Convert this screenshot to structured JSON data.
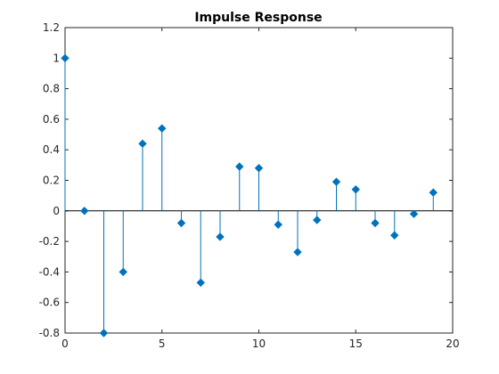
{
  "chart_data": {
    "type": "stem",
    "title": "Impulse Response",
    "xlabel": "",
    "ylabel": "",
    "xlim": [
      0,
      20
    ],
    "ylim": [
      -0.8,
      1.2
    ],
    "xticks": [
      0,
      5,
      10,
      15,
      20
    ],
    "yticks": [
      -0.8,
      -0.6,
      -0.4,
      -0.2,
      0,
      0.2,
      0.4,
      0.6,
      0.8,
      1,
      1.2
    ],
    "grid": false,
    "baseline": 0,
    "series": [
      {
        "x": [
          0,
          1,
          2,
          3,
          4,
          5,
          6,
          7,
          8,
          9,
          10,
          11,
          12,
          13,
          14,
          15,
          16,
          17,
          18,
          19
        ],
        "y": [
          1.0,
          0.0,
          -0.8,
          -0.4,
          0.44,
          0.54,
          -0.08,
          -0.47,
          -0.17,
          0.29,
          0.28,
          -0.09,
          -0.27,
          -0.06,
          0.19,
          0.14,
          -0.08,
          -0.16,
          -0.02,
          0.12
        ]
      }
    ],
    "colors": {
      "stem": "#0072BD",
      "axis": "#262626",
      "baseline": "#000000"
    }
  }
}
